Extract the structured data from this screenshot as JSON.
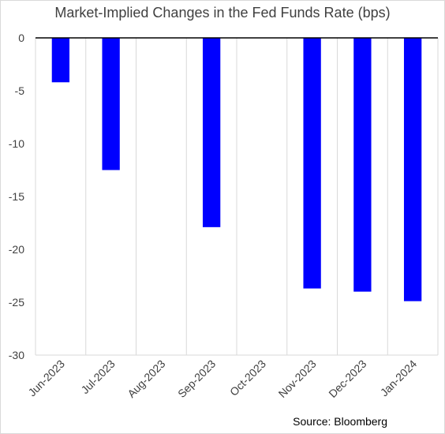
{
  "chart_data": {
    "type": "bar",
    "title": "Market-Implied Changes in the Fed Funds Rate (bps)",
    "categories": [
      "Jun-2023",
      "Jul-2023",
      "Aug-2023",
      "Sep-2023",
      "Oct-2023",
      "Nov-2023",
      "Dec-2023",
      "Jan-2024"
    ],
    "values": [
      -4.2,
      -12.5,
      null,
      -17.9,
      null,
      -23.7,
      -24.0,
      -24.9
    ],
    "xlabel": "",
    "ylabel": "",
    "ylim": [
      -30,
      0
    ],
    "yticks": [
      0,
      -5,
      -10,
      -15,
      -20,
      -25,
      -30
    ],
    "grid": "vertical",
    "bar_color": "#0000ff",
    "source": "Source: Bloomberg"
  }
}
